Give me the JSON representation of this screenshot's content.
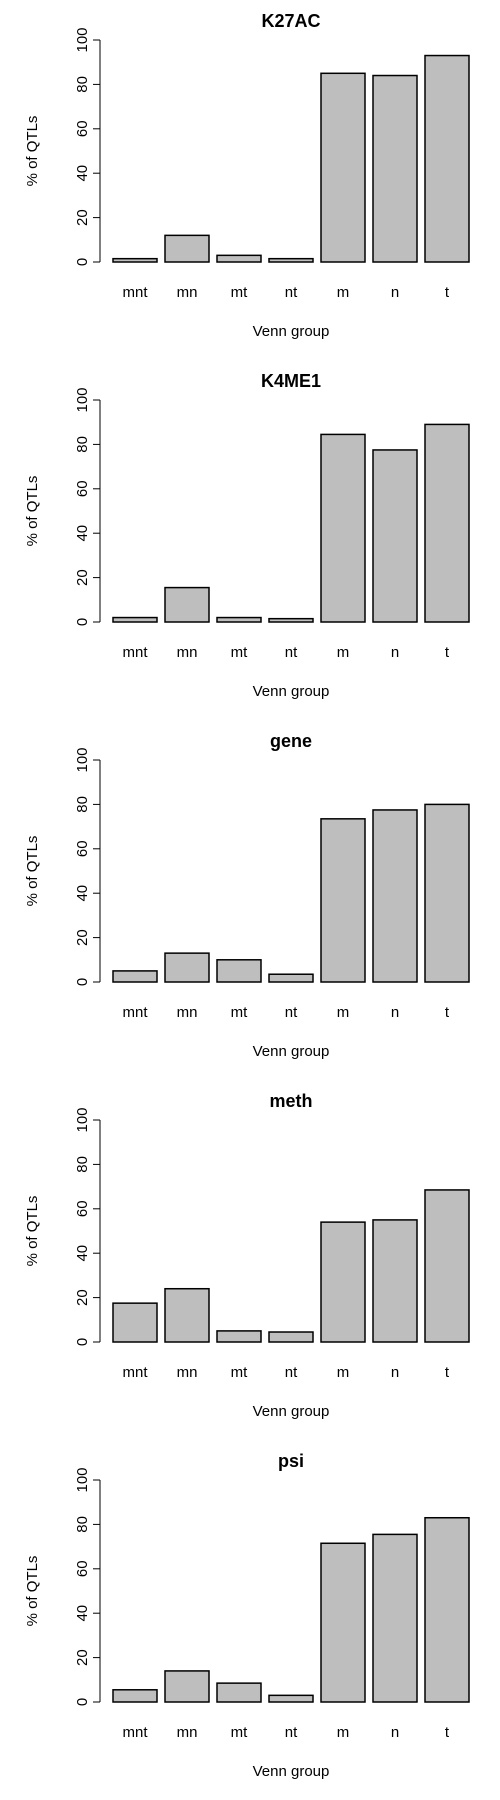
{
  "chart_data": [
    {
      "type": "bar",
      "title": "K27AC",
      "categories": [
        "mnt",
        "mn",
        "mt",
        "nt",
        "m",
        "n",
        "t"
      ],
      "values": [
        1.5,
        12,
        3,
        1.5,
        85,
        84,
        93
      ],
      "xlabel": "Venn group",
      "ylabel": "% of QTLs",
      "ylim": [
        0,
        100
      ],
      "yticks": [
        "0",
        "20",
        "40",
        "60",
        "80",
        "100"
      ],
      "bar_color": "#bebebe",
      "grid": false
    },
    {
      "type": "bar",
      "title": "K4ME1",
      "categories": [
        "mnt",
        "mn",
        "mt",
        "nt",
        "m",
        "n",
        "t"
      ],
      "values": [
        2,
        15.5,
        2,
        1.5,
        84.5,
        77.5,
        89
      ],
      "xlabel": "Venn group",
      "ylabel": "% of QTLs",
      "ylim": [
        0,
        100
      ],
      "yticks": [
        "0",
        "20",
        "40",
        "60",
        "80",
        "100"
      ],
      "bar_color": "#bebebe",
      "grid": false
    },
    {
      "type": "bar",
      "title": "gene",
      "categories": [
        "mnt",
        "mn",
        "mt",
        "nt",
        "m",
        "n",
        "t"
      ],
      "values": [
        5,
        13,
        10,
        3.5,
        73.5,
        77.5,
        80
      ],
      "xlabel": "Venn group",
      "ylabel": "% of QTLs",
      "ylim": [
        0,
        100
      ],
      "yticks": [
        "0",
        "20",
        "40",
        "60",
        "80",
        "100"
      ],
      "bar_color": "#bebebe",
      "grid": false
    },
    {
      "type": "bar",
      "title": "meth",
      "categories": [
        "mnt",
        "mn",
        "mt",
        "nt",
        "m",
        "n",
        "t"
      ],
      "values": [
        17.5,
        24,
        5,
        4.5,
        54,
        55,
        68.5
      ],
      "xlabel": "Venn group",
      "ylabel": "% of QTLs",
      "ylim": [
        0,
        100
      ],
      "yticks": [
        "0",
        "20",
        "40",
        "60",
        "80",
        "100"
      ],
      "bar_color": "#bebebe",
      "grid": false
    },
    {
      "type": "bar",
      "title": "psi",
      "categories": [
        "mnt",
        "mn",
        "mt",
        "nt",
        "m",
        "n",
        "t"
      ],
      "values": [
        5.5,
        14,
        8.5,
        3,
        71.5,
        75.5,
        83
      ],
      "xlabel": "Venn group",
      "ylabel": "% of QTLs",
      "ylim": [
        0,
        100
      ],
      "yticks": [
        "0",
        "20",
        "40",
        "60",
        "80",
        "100"
      ],
      "bar_color": "#bebebe",
      "grid": false
    }
  ]
}
